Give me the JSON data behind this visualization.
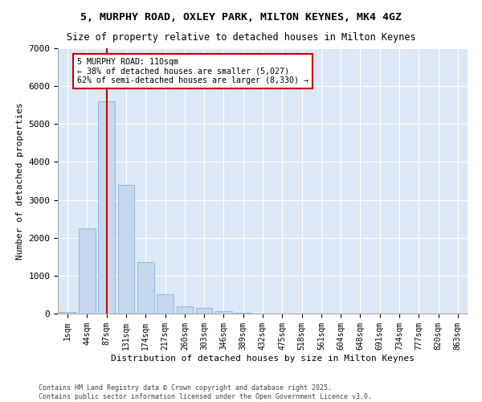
{
  "title1": "5, MURPHY ROAD, OXLEY PARK, MILTON KEYNES, MK4 4GZ",
  "title2": "Size of property relative to detached houses in Milton Keynes",
  "xlabel": "Distribution of detached houses by size in Milton Keynes",
  "ylabel": "Number of detached properties",
  "bar_labels": [
    "1sqm",
    "44sqm",
    "87sqm",
    "131sqm",
    "174sqm",
    "217sqm",
    "260sqm",
    "303sqm",
    "346sqm",
    "389sqm",
    "432sqm",
    "475sqm",
    "518sqm",
    "561sqm",
    "604sqm",
    "648sqm",
    "691sqm",
    "734sqm",
    "777sqm",
    "820sqm",
    "863sqm"
  ],
  "bar_values": [
    50,
    2250,
    5600,
    3400,
    1350,
    500,
    200,
    150,
    70,
    25,
    0,
    0,
    0,
    0,
    0,
    0,
    0,
    0,
    0,
    0,
    0
  ],
  "bar_color": "#c5d8ee",
  "bar_edgecolor": "#7aaed4",
  "background_color": "#dce8f5",
  "vline_x": 2,
  "vline_color": "#cc0000",
  "annotation_text": "5 MURPHY ROAD: 110sqm\n← 38% of detached houses are smaller (5,027)\n62% of semi-detached houses are larger (8,330) →",
  "annotation_box_facecolor": "#ffffff",
  "annotation_box_edgecolor": "#cc0000",
  "ylim": [
    0,
    7000
  ],
  "yticks": [
    0,
    1000,
    2000,
    3000,
    4000,
    5000,
    6000,
    7000
  ],
  "footnote1": "Contains HM Land Registry data © Crown copyright and database right 2025.",
  "footnote2": "Contains public sector information licensed under the Open Government Licence v3.0."
}
